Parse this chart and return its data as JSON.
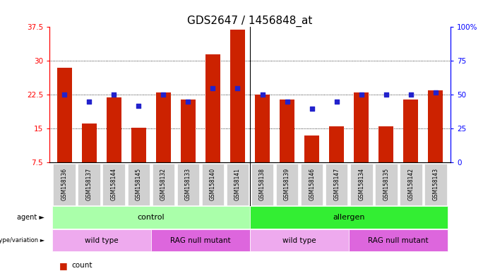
{
  "title": "GDS2647 / 1456848_at",
  "samples": [
    "GSM158136",
    "GSM158137",
    "GSM158144",
    "GSM158145",
    "GSM158132",
    "GSM158133",
    "GSM158140",
    "GSM158141",
    "GSM158138",
    "GSM158139",
    "GSM158146",
    "GSM158147",
    "GSM158134",
    "GSM158135",
    "GSM158142",
    "GSM158143"
  ],
  "counts": [
    28.5,
    16.2,
    22.0,
    15.2,
    23.0,
    21.5,
    31.5,
    37.0,
    22.5,
    21.5,
    13.5,
    15.5,
    23.0,
    15.5,
    21.5,
    23.5
  ],
  "percentiles": [
    50,
    45,
    50,
    42,
    50,
    45,
    55,
    55,
    50,
    45,
    40,
    45,
    50,
    50,
    50,
    52
  ],
  "ymin": 7.5,
  "ymax": 37.5,
  "yticks": [
    7.5,
    15,
    22.5,
    30,
    37.5
  ],
  "right_yticks": [
    0,
    25,
    50,
    75,
    100
  ],
  "bar_color": "#CC2200",
  "dot_color": "#2222CC",
  "agent_row": [
    {
      "label": "control",
      "start": 0,
      "end": 8,
      "color": "#AAFFAA"
    },
    {
      "label": "allergen",
      "start": 8,
      "end": 16,
      "color": "#33EE33"
    }
  ],
  "genotype_row": [
    {
      "label": "wild type",
      "start": 0,
      "end": 4,
      "color": "#EEAAEE"
    },
    {
      "label": "RAG null mutant",
      "start": 4,
      "end": 8,
      "color": "#DD66DD"
    },
    {
      "label": "wild type",
      "start": 8,
      "end": 12,
      "color": "#EEAAEE"
    },
    {
      "label": "RAG null mutant",
      "start": 12,
      "end": 16,
      "color": "#DD66DD"
    }
  ],
  "separator_col": 8,
  "title_fontsize": 11
}
